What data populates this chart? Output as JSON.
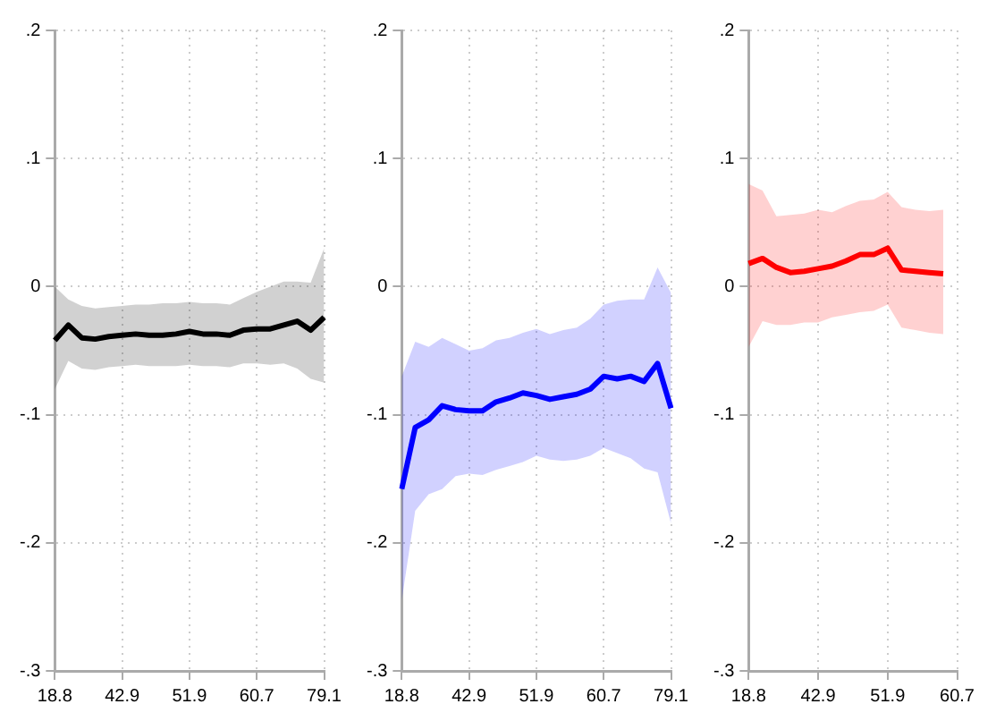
{
  "chart_data": [
    {
      "type": "line",
      "categories": [
        "18.8",
        null,
        null,
        null,
        null,
        "42.9",
        null,
        null,
        null,
        null,
        "51.9",
        null,
        null,
        null,
        null,
        "60.7",
        null,
        null,
        null,
        null,
        "79.1"
      ],
      "series": [
        {
          "color": "#000000",
          "values": [
            -0.042,
            -0.03,
            -0.04,
            -0.041,
            -0.039,
            -0.038,
            -0.037,
            -0.038,
            -0.038,
            -0.037,
            -0.035,
            -0.037,
            -0.037,
            -0.038,
            -0.034,
            -0.033,
            -0.033,
            -0.03,
            -0.027,
            -0.034,
            -0.024
          ],
          "upper": [
            0.0,
            -0.01,
            -0.015,
            -0.017,
            -0.016,
            -0.015,
            -0.014,
            -0.014,
            -0.013,
            -0.013,
            -0.012,
            -0.013,
            -0.013,
            -0.014,
            -0.009,
            -0.004,
            0.0,
            0.004,
            0.004,
            0.003,
            0.03
          ],
          "lower": [
            -0.08,
            -0.058,
            -0.064,
            -0.065,
            -0.063,
            -0.062,
            -0.061,
            -0.062,
            -0.062,
            -0.062,
            -0.061,
            -0.062,
            -0.062,
            -0.063,
            -0.06,
            -0.06,
            -0.061,
            -0.06,
            -0.064,
            -0.072,
            -0.075
          ]
        }
      ],
      "ylim": [
        -0.3,
        0.2
      ],
      "yticks": [
        {
          "value": -0.3,
          "label": "-.3"
        },
        {
          "value": -0.2,
          "label": "-.2"
        },
        {
          "value": -0.1,
          "label": "-.1"
        },
        {
          "value": 0,
          "label": "0"
        },
        {
          "value": 0.1,
          "label": ".1"
        },
        {
          "value": 0.2,
          "label": ".2"
        }
      ],
      "grid": true,
      "marker": "none"
    },
    {
      "type": "line",
      "categories": [
        "18.8",
        null,
        null,
        null,
        null,
        "42.9",
        null,
        null,
        null,
        null,
        "51.9",
        null,
        null,
        null,
        null,
        "60.7",
        null,
        null,
        null,
        null,
        "79.1"
      ],
      "series": [
        {
          "color": "#0000ff",
          "values": [
            -0.158,
            -0.11,
            -0.104,
            -0.093,
            -0.096,
            -0.097,
            -0.097,
            -0.09,
            -0.087,
            -0.083,
            -0.085,
            -0.088,
            -0.086,
            -0.084,
            -0.08,
            -0.07,
            -0.072,
            -0.07,
            -0.074,
            -0.06,
            -0.095
          ],
          "upper": [
            -0.07,
            -0.043,
            -0.047,
            -0.04,
            -0.045,
            -0.05,
            -0.048,
            -0.042,
            -0.04,
            -0.036,
            -0.033,
            -0.037,
            -0.034,
            -0.032,
            -0.025,
            -0.014,
            -0.011,
            -0.01,
            -0.01,
            0.015,
            -0.005
          ],
          "lower": [
            -0.245,
            -0.175,
            -0.162,
            -0.158,
            -0.148,
            -0.146,
            -0.147,
            -0.143,
            -0.14,
            -0.137,
            -0.132,
            -0.135,
            -0.136,
            -0.135,
            -0.132,
            -0.126,
            -0.13,
            -0.134,
            -0.142,
            -0.145,
            -0.185
          ]
        }
      ],
      "ylim": [
        -0.3,
        0.2
      ],
      "yticks": [
        {
          "value": -0.3,
          "label": "-.3"
        },
        {
          "value": -0.2,
          "label": "-.2"
        },
        {
          "value": -0.1,
          "label": "-.1"
        },
        {
          "value": 0,
          "label": "0"
        },
        {
          "value": 0.1,
          "label": ".1"
        },
        {
          "value": 0.2,
          "label": ".2"
        }
      ],
      "grid": true,
      "marker": "none"
    },
    {
      "type": "line",
      "categories": [
        "18.8",
        null,
        null,
        null,
        null,
        "42.9",
        null,
        null,
        null,
        null,
        "51.9",
        null,
        null,
        null,
        null,
        "60.7"
      ],
      "series": [
        {
          "color": "#ff0000",
          "values": [
            0.018,
            0.022,
            0.015,
            0.011,
            0.012,
            0.014,
            0.016,
            0.02,
            0.025,
            0.025,
            0.03,
            0.013,
            0.012,
            0.011,
            0.01,
            null
          ],
          "upper": [
            0.08,
            0.075,
            0.055,
            0.056,
            0.057,
            0.06,
            0.058,
            0.063,
            0.067,
            0.068,
            0.074,
            0.062,
            0.06,
            0.059,
            0.06,
            null
          ],
          "lower": [
            -0.047,
            -0.027,
            -0.03,
            -0.03,
            -0.028,
            -0.028,
            -0.024,
            -0.022,
            -0.02,
            -0.019,
            -0.014,
            -0.032,
            -0.034,
            -0.036,
            -0.037,
            null
          ]
        }
      ],
      "ylim": [
        -0.3,
        0.2
      ],
      "yticks": [
        {
          "value": -0.3,
          "label": "-.3"
        },
        {
          "value": -0.2,
          "label": "-.2"
        },
        {
          "value": -0.1,
          "label": "-.1"
        },
        {
          "value": 0,
          "label": "0"
        },
        {
          "value": 0.1,
          "label": ".1"
        },
        {
          "value": 0.2,
          "label": ".2"
        }
      ],
      "grid": true,
      "marker": "none"
    }
  ]
}
